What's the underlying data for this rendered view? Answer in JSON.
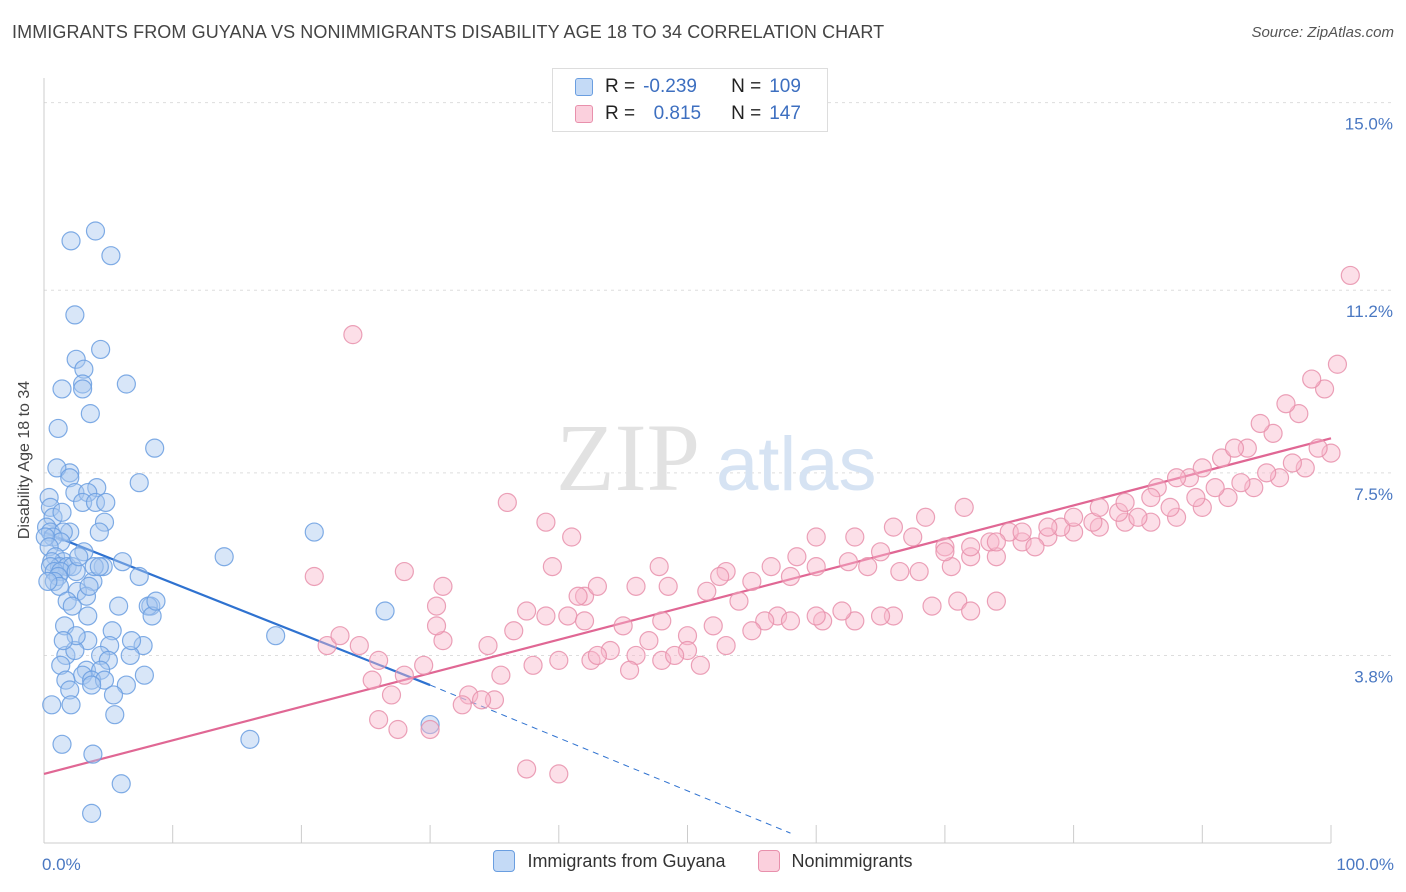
{
  "header": {
    "title": "IMMIGRANTS FROM GUYANA VS NONIMMIGRANTS DISABILITY AGE 18 TO 34 CORRELATION CHART",
    "source": "Source: ZipAtlas.com"
  },
  "watermark": {
    "zip": "ZIP",
    "atlas": "atlas"
  },
  "legend": {
    "rows": [
      {
        "r_label": "R =",
        "r_value": "-0.239",
        "n_label": "N =",
        "n_value": "109",
        "color": "#a8c8f0",
        "border": "#6a9ee0"
      },
      {
        "r_label": "R =",
        "r_value": "0.815",
        "n_label": "N =",
        "n_value": "147",
        "color": "#f8b8cc",
        "border": "#e890ac"
      }
    ]
  },
  "chart_data": {
    "type": "scatter",
    "title": "IMMIGRANTS FROM GUYANA VS NONIMMIGRANTS DISABILITY AGE 18 TO 34 CORRELATION CHART",
    "xlabel": "",
    "ylabel": "Disability Age 18 to 34",
    "xlim": [
      0,
      100
    ],
    "ylim": [
      0,
      15.5
    ],
    "x_tick_labels": [
      "0.0%",
      "100.0%"
    ],
    "y_ticks": [
      3.8,
      7.5,
      11.2,
      15.0
    ],
    "y_tick_labels": [
      "3.8%",
      "7.5%",
      "11.2%",
      "15.0%"
    ],
    "grid": true,
    "legend_position": "top-center",
    "series": [
      {
        "name": "Immigrants from Guyana",
        "color": "#6a9ee0",
        "fill": "#a8c8f0",
        "trend": {
          "x0": 0,
          "y0": 6.3,
          "x1": 30,
          "y1": 3.2,
          "dashed_to_x": 58,
          "dashed_to_y": 0.2
        },
        "points": [
          [
            2.1,
            12.2
          ],
          [
            4.0,
            12.4
          ],
          [
            5.2,
            11.9
          ],
          [
            2.4,
            10.7
          ],
          [
            4.4,
            10.0
          ],
          [
            2.5,
            9.8
          ],
          [
            3.1,
            9.6
          ],
          [
            3.0,
            9.3
          ],
          [
            6.4,
            9.3
          ],
          [
            3.0,
            9.2
          ],
          [
            1.4,
            9.2
          ],
          [
            3.6,
            8.7
          ],
          [
            1.1,
            8.4
          ],
          [
            8.6,
            8.0
          ],
          [
            2.0,
            7.5
          ],
          [
            1.0,
            7.6
          ],
          [
            2.0,
            7.4
          ],
          [
            7.4,
            7.3
          ],
          [
            4.1,
            7.2
          ],
          [
            2.4,
            7.1
          ],
          [
            3.4,
            7.1
          ],
          [
            0.4,
            7.0
          ],
          [
            3.0,
            6.9
          ],
          [
            0.5,
            6.8
          ],
          [
            4.0,
            6.9
          ],
          [
            4.8,
            6.9
          ],
          [
            0.7,
            6.6
          ],
          [
            1.4,
            6.7
          ],
          [
            4.7,
            6.5
          ],
          [
            0.2,
            6.4
          ],
          [
            2.0,
            6.3
          ],
          [
            0.5,
            6.3
          ],
          [
            1.5,
            6.3
          ],
          [
            4.3,
            6.3
          ],
          [
            0.7,
            6.2
          ],
          [
            1.3,
            6.1
          ],
          [
            0.1,
            6.2
          ],
          [
            21.0,
            6.3
          ],
          [
            3.1,
            5.9
          ],
          [
            0.4,
            6.0
          ],
          [
            0.9,
            5.8
          ],
          [
            1.5,
            5.7
          ],
          [
            0.6,
            5.7
          ],
          [
            1.2,
            5.6
          ],
          [
            0.5,
            5.6
          ],
          [
            1.8,
            5.6
          ],
          [
            2.2,
            5.6
          ],
          [
            0.8,
            5.5
          ],
          [
            1.3,
            5.5
          ],
          [
            2.5,
            5.5
          ],
          [
            6.1,
            5.7
          ],
          [
            14.0,
            5.8
          ],
          [
            4.6,
            5.6
          ],
          [
            1.1,
            5.4
          ],
          [
            0.8,
            5.3
          ],
          [
            7.4,
            5.4
          ],
          [
            3.8,
            5.3
          ],
          [
            1.2,
            5.2
          ],
          [
            2.6,
            5.1
          ],
          [
            3.3,
            5.0
          ],
          [
            1.8,
            4.9
          ],
          [
            5.8,
            4.8
          ],
          [
            8.3,
            4.8
          ],
          [
            8.1,
            4.8
          ],
          [
            2.2,
            4.8
          ],
          [
            3.4,
            4.6
          ],
          [
            26.5,
            4.7
          ],
          [
            8.4,
            4.6
          ],
          [
            1.6,
            4.4
          ],
          [
            5.3,
            4.3
          ],
          [
            18.0,
            4.2
          ],
          [
            3.4,
            4.1
          ],
          [
            5.1,
            4.0
          ],
          [
            7.7,
            4.0
          ],
          [
            1.7,
            3.8
          ],
          [
            4.4,
            3.8
          ],
          [
            6.7,
            3.8
          ],
          [
            2.4,
            3.9
          ],
          [
            1.3,
            3.6
          ],
          [
            3.3,
            3.5
          ],
          [
            5.0,
            3.7
          ],
          [
            4.4,
            3.5
          ],
          [
            3.0,
            3.4
          ],
          [
            7.8,
            3.4
          ],
          [
            3.7,
            3.3
          ],
          [
            4.7,
            3.3
          ],
          [
            6.4,
            3.2
          ],
          [
            1.7,
            3.3
          ],
          [
            3.7,
            3.2
          ],
          [
            2.0,
            3.1
          ],
          [
            5.4,
            3.0
          ],
          [
            2.1,
            2.8
          ],
          [
            5.5,
            2.6
          ],
          [
            0.6,
            2.8
          ],
          [
            16.0,
            2.1
          ],
          [
            30.0,
            2.4
          ],
          [
            1.4,
            2.0
          ],
          [
            3.8,
            1.8
          ],
          [
            6.0,
            1.2
          ],
          [
            3.7,
            0.6
          ],
          [
            8.7,
            4.9
          ],
          [
            6.8,
            4.1
          ],
          [
            2.5,
            4.2
          ],
          [
            1.5,
            4.1
          ],
          [
            3.5,
            5.2
          ],
          [
            3.9,
            5.6
          ],
          [
            0.3,
            5.3
          ],
          [
            2.7,
            5.8
          ],
          [
            4.3,
            5.6
          ]
        ]
      },
      {
        "name": "Nonimmigrants",
        "color": "#e890ac",
        "fill": "#f8b8cc",
        "trend": {
          "x0": 0,
          "y0": 1.4,
          "x1": 100,
          "y1": 8.2
        },
        "points": [
          [
            24.0,
            10.3
          ],
          [
            36.0,
            6.9
          ],
          [
            39.0,
            6.5
          ],
          [
            41.0,
            6.2
          ],
          [
            39.5,
            5.6
          ],
          [
            42.0,
            5.0
          ],
          [
            47.8,
            5.6
          ],
          [
            53.0,
            5.5
          ],
          [
            54.0,
            4.9
          ],
          [
            28.0,
            5.5
          ],
          [
            30.5,
            4.8
          ],
          [
            37.5,
            4.7
          ],
          [
            40.7,
            4.6
          ],
          [
            39.0,
            4.6
          ],
          [
            42.0,
            4.5
          ],
          [
            45.0,
            4.4
          ],
          [
            48.0,
            4.5
          ],
          [
            52.0,
            4.4
          ],
          [
            57.0,
            4.6
          ],
          [
            58.0,
            4.5
          ],
          [
            60.5,
            4.5
          ],
          [
            63.0,
            4.5
          ],
          [
            66.0,
            4.6
          ],
          [
            69.0,
            4.8
          ],
          [
            71.0,
            4.9
          ],
          [
            74.0,
            4.9
          ],
          [
            72.0,
            4.7
          ],
          [
            65.0,
            4.6
          ],
          [
            62.0,
            4.7
          ],
          [
            60.0,
            4.6
          ],
          [
            56.0,
            4.5
          ],
          [
            55.0,
            4.3
          ],
          [
            50.0,
            4.2
          ],
          [
            47.0,
            4.1
          ],
          [
            44.0,
            3.9
          ],
          [
            42.5,
            3.7
          ],
          [
            43.0,
            3.8
          ],
          [
            46.0,
            3.8
          ],
          [
            48.0,
            3.7
          ],
          [
            50.0,
            3.9
          ],
          [
            53.0,
            4.0
          ],
          [
            36.5,
            4.3
          ],
          [
            34.5,
            4.0
          ],
          [
            31.0,
            4.1
          ],
          [
            29.5,
            3.6
          ],
          [
            28.0,
            3.4
          ],
          [
            26.0,
            3.7
          ],
          [
            22.0,
            4.0
          ],
          [
            25.5,
            3.3
          ],
          [
            27.0,
            3.0
          ],
          [
            33.0,
            3.0
          ],
          [
            35.0,
            2.9
          ],
          [
            38.0,
            3.6
          ],
          [
            40.0,
            3.7
          ],
          [
            45.5,
            3.5
          ],
          [
            49.0,
            3.8
          ],
          [
            51.0,
            3.6
          ],
          [
            26.0,
            2.5
          ],
          [
            27.5,
            2.3
          ],
          [
            30.0,
            2.3
          ],
          [
            32.5,
            2.8
          ],
          [
            34.0,
            2.9
          ],
          [
            37.5,
            1.5
          ],
          [
            40.0,
            1.4
          ],
          [
            35.5,
            3.4
          ],
          [
            21.0,
            5.4
          ],
          [
            23.0,
            4.2
          ],
          [
            24.5,
            4.0
          ],
          [
            31.0,
            5.2
          ],
          [
            30.5,
            4.4
          ],
          [
            41.5,
            5.0
          ],
          [
            43.0,
            5.2
          ],
          [
            46.0,
            5.2
          ],
          [
            48.5,
            5.2
          ],
          [
            51.5,
            5.1
          ],
          [
            52.5,
            5.4
          ],
          [
            55.0,
            5.3
          ],
          [
            58.0,
            5.4
          ],
          [
            60.0,
            5.6
          ],
          [
            62.5,
            5.7
          ],
          [
            64.0,
            5.6
          ],
          [
            66.5,
            5.5
          ],
          [
            68.0,
            5.5
          ],
          [
            70.5,
            5.6
          ],
          [
            72.0,
            5.8
          ],
          [
            74.0,
            5.8
          ],
          [
            76.0,
            6.1
          ],
          [
            78.0,
            6.2
          ],
          [
            80.0,
            6.3
          ],
          [
            82.0,
            6.4
          ],
          [
            84.0,
            6.5
          ],
          [
            86.0,
            6.5
          ],
          [
            88.0,
            6.6
          ],
          [
            90.0,
            6.8
          ],
          [
            92.0,
            7.0
          ],
          [
            94.0,
            7.2
          ],
          [
            96.0,
            7.4
          ],
          [
            98.0,
            7.6
          ],
          [
            100.0,
            7.9
          ],
          [
            65.0,
            5.9
          ],
          [
            67.5,
            6.2
          ],
          [
            70.0,
            6.0
          ],
          [
            73.5,
            6.1
          ],
          [
            75.0,
            6.3
          ],
          [
            77.0,
            6.0
          ],
          [
            79.0,
            6.4
          ],
          [
            81.5,
            6.5
          ],
          [
            83.5,
            6.7
          ],
          [
            85.0,
            6.6
          ],
          [
            87.5,
            6.8
          ],
          [
            89.5,
            7.0
          ],
          [
            91.0,
            7.2
          ],
          [
            93.0,
            7.3
          ],
          [
            95.0,
            7.5
          ],
          [
            97.0,
            7.7
          ],
          [
            99.0,
            8.0
          ],
          [
            68.5,
            6.6
          ],
          [
            71.5,
            6.8
          ],
          [
            63.0,
            6.2
          ],
          [
            66.0,
            6.4
          ],
          [
            86.5,
            7.2
          ],
          [
            89.0,
            7.4
          ],
          [
            91.5,
            7.8
          ],
          [
            93.5,
            8.0
          ],
          [
            95.5,
            8.3
          ],
          [
            97.5,
            8.7
          ],
          [
            99.5,
            9.2
          ],
          [
            100.5,
            9.7
          ],
          [
            98.5,
            9.4
          ],
          [
            96.5,
            8.9
          ],
          [
            94.5,
            8.5
          ],
          [
            92.5,
            8.0
          ],
          [
            90.0,
            7.6
          ],
          [
            88.0,
            7.4
          ],
          [
            86.0,
            7.0
          ],
          [
            84.0,
            6.9
          ],
          [
            82.0,
            6.8
          ],
          [
            80.0,
            6.6
          ],
          [
            78.0,
            6.4
          ],
          [
            76.0,
            6.3
          ],
          [
            74.0,
            6.1
          ],
          [
            72.0,
            6.0
          ],
          [
            70.0,
            5.9
          ],
          [
            60.0,
            6.2
          ],
          [
            58.5,
            5.8
          ],
          [
            56.5,
            5.6
          ],
          [
            101.5,
            11.5
          ]
        ]
      }
    ]
  }
}
